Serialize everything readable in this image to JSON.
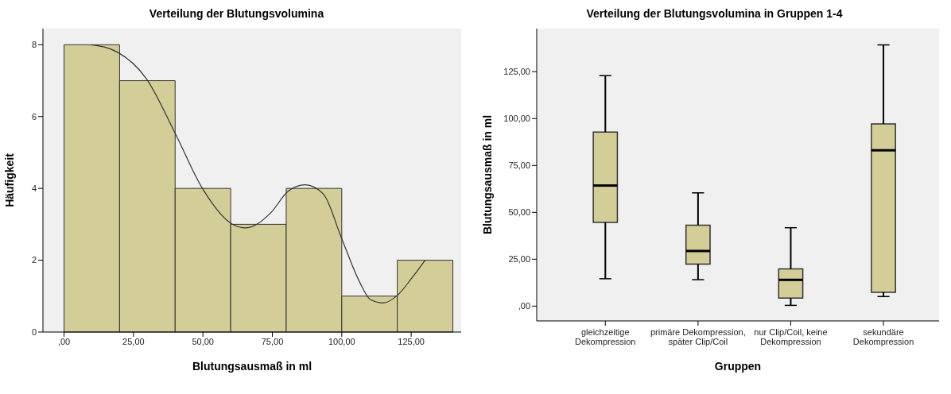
{
  "chart_data": [
    {
      "type": "histogram",
      "title": "Verteilung der Blutungsvolumina",
      "xlabel": "Blutungsausmaß in ml",
      "ylabel": "Häufigkeit",
      "bins": [
        0,
        20,
        40,
        60,
        80,
        100,
        120,
        140
      ],
      "values": [
        8,
        7,
        4,
        3,
        4,
        1,
        2
      ],
      "color": "#d3ce97",
      "xlim": [
        -7.6,
        143
      ],
      "xticks": [
        {
          "value": 0,
          "label": ",00"
        },
        {
          "value": 25,
          "label": "25,00"
        },
        {
          "value": 50,
          "label": "50,00"
        },
        {
          "value": 75,
          "label": "75,00"
        },
        {
          "value": 100,
          "label": "100,00"
        },
        {
          "value": 125,
          "label": "125,00"
        }
      ],
      "ylim": [
        0,
        8.45
      ],
      "yticks": [
        0,
        2,
        4,
        6,
        8
      ],
      "grid": false,
      "legend": false,
      "series": [
        {
          "type": "line",
          "color": "#333333",
          "x": [
            9.8,
            19.1,
            29.7,
            39.8,
            49.9,
            60.5,
            65.5,
            74.3,
            80.7,
            86.8,
            93.4,
            99.8,
            106.2,
            110.4,
            114.9,
            120,
            125.3,
            130
          ],
          "values": [
            8.0,
            7.8,
            7.05,
            5.57,
            3.99,
            3.01,
            2.9,
            3.31,
            3.92,
            4.1,
            3.84,
            2.64,
            1.43,
            0.9,
            0.81,
            1.02,
            1.51,
            2.0
          ]
        }
      ]
    },
    {
      "type": "box",
      "title": "Verteilung der Blutungsvolumina in Gruppen 1-4",
      "xlabel": "Gruppen",
      "ylabel": "Blutungsausmaß in ml",
      "categories": [
        "gleichzeitige Dekompression",
        "primäre Dekompression, später Clip/Coil",
        "nur Clip/Coil, keine Dekompression",
        "sekundäre Dekompression"
      ],
      "color": "#d3ce97",
      "ylim": [
        -7.9,
        148
      ],
      "yticks": [
        {
          "value": 0,
          "label": ",00"
        },
        {
          "value": 25,
          "label": "25,00"
        },
        {
          "value": 50,
          "label": "50,00"
        },
        {
          "value": 75,
          "label": "75,00"
        },
        {
          "value": 100,
          "label": "100,00"
        },
        {
          "value": 125,
          "label": "125,00"
        }
      ],
      "grid": false,
      "legend": false,
      "boxes": [
        {
          "low": 14.6,
          "q1": 44.6,
          "median": 64.3,
          "q3": 92.8,
          "high": 122.9
        },
        {
          "low": 14.1,
          "q1": 22.4,
          "median": 29.4,
          "q3": 43.1,
          "high": 60.4
        },
        {
          "low": 0.4,
          "q1": 4.3,
          "median": 14.0,
          "q3": 19.9,
          "high": 41.8
        },
        {
          "low": 5.1,
          "q1": 7.4,
          "median": 83.1,
          "q3": 97.2,
          "high": 139.3
        }
      ]
    }
  ]
}
